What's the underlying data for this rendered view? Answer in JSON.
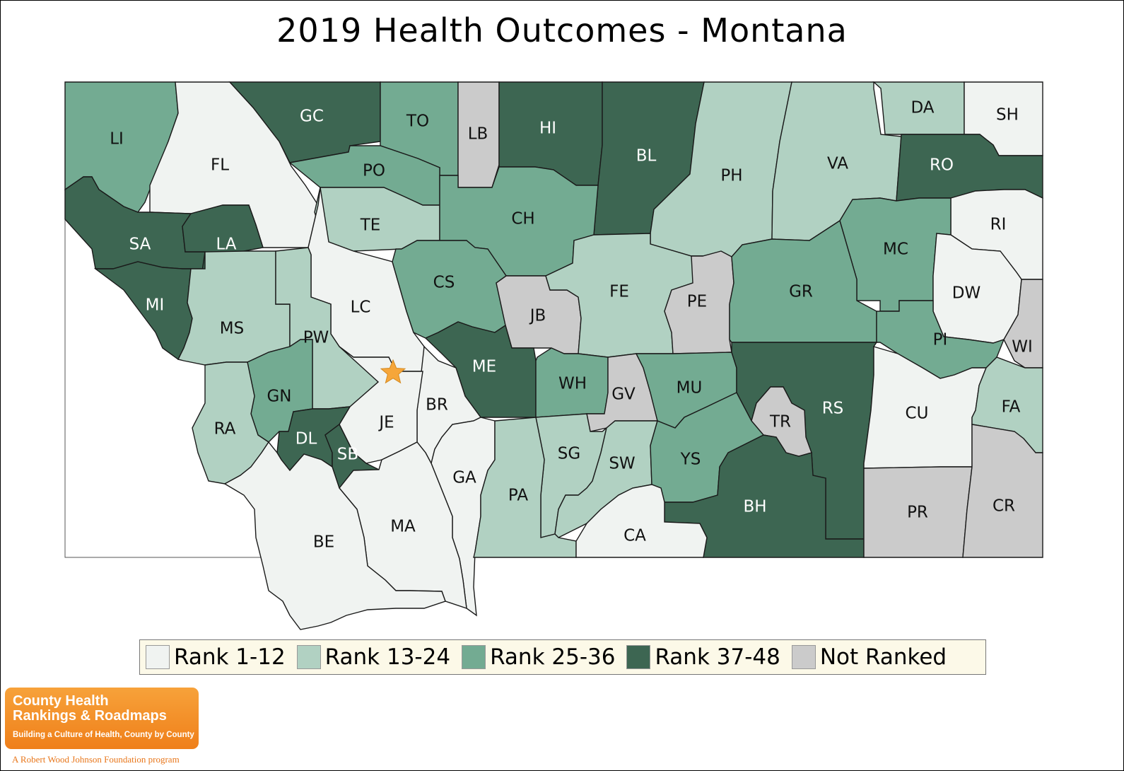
{
  "title": "2019 Health Outcomes - Montana",
  "colors": {
    "rank_1_12": "#f0f3f1",
    "rank_13_24": "#b1d1c2",
    "rank_25_36": "#73ab92",
    "rank_37_48": "#3d6652",
    "not_ranked": "#cbcbcb",
    "capital_star": "#f6a63a"
  },
  "legend": [
    {
      "label": "Rank 1-12",
      "color": "#f0f3f1"
    },
    {
      "label": "Rank 13-24",
      "color": "#b1d1c2"
    },
    {
      "label": "Rank 25-36",
      "color": "#73ab92"
    },
    {
      "label": "Rank 37-48",
      "color": "#3d6652"
    },
    {
      "label": "Not Ranked",
      "color": "#cbcbcb"
    }
  ],
  "counties": [
    {
      "abbr": "LI",
      "category": "rank_25_36"
    },
    {
      "abbr": "FL",
      "category": "rank_1_12"
    },
    {
      "abbr": "GC",
      "category": "rank_37_48"
    },
    {
      "abbr": "TO",
      "category": "rank_25_36"
    },
    {
      "abbr": "LB",
      "category": "not_ranked"
    },
    {
      "abbr": "HI",
      "category": "rank_37_48"
    },
    {
      "abbr": "BL",
      "category": "rank_37_48"
    },
    {
      "abbr": "PH",
      "category": "rank_13_24"
    },
    {
      "abbr": "VA",
      "category": "rank_13_24"
    },
    {
      "abbr": "DA",
      "category": "rank_13_24"
    },
    {
      "abbr": "SH",
      "category": "rank_1_12"
    },
    {
      "abbr": "RO",
      "category": "rank_37_48"
    },
    {
      "abbr": "PO",
      "category": "rank_25_36"
    },
    {
      "abbr": "SA",
      "category": "rank_37_48"
    },
    {
      "abbr": "LA",
      "category": "rank_37_48"
    },
    {
      "abbr": "TE",
      "category": "rank_13_24"
    },
    {
      "abbr": "CH",
      "category": "rank_25_36"
    },
    {
      "abbr": "RI",
      "category": "rank_1_12"
    },
    {
      "abbr": "MC",
      "category": "rank_25_36"
    },
    {
      "abbr": "MI",
      "category": "rank_37_48"
    },
    {
      "abbr": "MS",
      "category": "rank_13_24"
    },
    {
      "abbr": "LC",
      "category": "rank_1_12"
    },
    {
      "abbr": "CS",
      "category": "rank_25_36"
    },
    {
      "abbr": "JB",
      "category": "not_ranked"
    },
    {
      "abbr": "FE",
      "category": "rank_13_24"
    },
    {
      "abbr": "PE",
      "category": "not_ranked"
    },
    {
      "abbr": "GR",
      "category": "rank_25_36"
    },
    {
      "abbr": "DW",
      "category": "rank_1_12"
    },
    {
      "abbr": "WI",
      "category": "not_ranked"
    },
    {
      "abbr": "PW",
      "category": "rank_13_24"
    },
    {
      "abbr": "PI",
      "category": "rank_25_36"
    },
    {
      "abbr": "ME",
      "category": "rank_37_48"
    },
    {
      "abbr": "WH",
      "category": "rank_25_36"
    },
    {
      "abbr": "GV",
      "category": "not_ranked"
    },
    {
      "abbr": "MU",
      "category": "rank_25_36"
    },
    {
      "abbr": "RS",
      "category": "rank_37_48"
    },
    {
      "abbr": "GN",
      "category": "rank_25_36"
    },
    {
      "abbr": "BR",
      "category": "rank_1_12"
    },
    {
      "abbr": "JE",
      "category": "rank_1_12"
    },
    {
      "abbr": "TR",
      "category": "not_ranked"
    },
    {
      "abbr": "CU",
      "category": "rank_1_12"
    },
    {
      "abbr": "FA",
      "category": "rank_13_24"
    },
    {
      "abbr": "RA",
      "category": "rank_13_24"
    },
    {
      "abbr": "DL",
      "category": "rank_37_48"
    },
    {
      "abbr": "SB",
      "category": "rank_37_48"
    },
    {
      "abbr": "SG",
      "category": "rank_13_24"
    },
    {
      "abbr": "SW",
      "category": "rank_13_24"
    },
    {
      "abbr": "YS",
      "category": "rank_25_36"
    },
    {
      "abbr": "GA",
      "category": "rank_1_12"
    },
    {
      "abbr": "PA",
      "category": "rank_13_24"
    },
    {
      "abbr": "MA",
      "category": "rank_1_12"
    },
    {
      "abbr": "BH",
      "category": "rank_37_48"
    },
    {
      "abbr": "PR",
      "category": "not_ranked"
    },
    {
      "abbr": "CR",
      "category": "not_ranked"
    },
    {
      "abbr": "BE",
      "category": "rank_1_12"
    },
    {
      "abbr": "CA",
      "category": "rank_1_12"
    }
  ],
  "logo": {
    "line1": "County Health",
    "line2": "Rankings & Roadmaps",
    "tagline": "Building a Culture of Health, County by County",
    "foot": "A Robert Wood Johnson Foundation program"
  }
}
